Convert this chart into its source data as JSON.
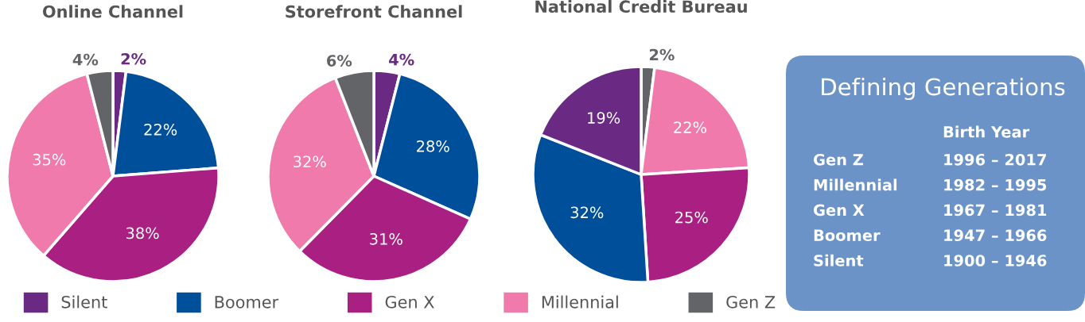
{
  "chart_data": [
    {
      "type": "pie",
      "title": "Online Channel",
      "categories": [
        "Silent",
        "Boomer",
        "Gen X",
        "Millennial",
        "Gen Z"
      ],
      "values": [
        2,
        22,
        38,
        35,
        4
      ],
      "colors": [
        "#6a2a84",
        "#004f9a",
        "#a91f82",
        "#ef7aab",
        "#636467"
      ],
      "value_labels": [
        "2%",
        "22%",
        "38%",
        "35%",
        "4%"
      ],
      "legend": "bottom"
    },
    {
      "type": "pie",
      "title": "Storefront Channel",
      "categories": [
        null,
        null,
        null,
        null,
        null
      ],
      "values": [
        4,
        28,
        31,
        32,
        6
      ],
      "colors": [
        "#6a2a84",
        "#004f9a",
        "#a91f82",
        "#ef7aab",
        "#636467"
      ],
      "value_labels": [
        "4%",
        "28%",
        "31%",
        "32%",
        "6%"
      ]
    },
    {
      "type": "pie",
      "title": "National Credit Bureau",
      "categories": [
        null,
        null,
        null,
        null,
        null
      ],
      "values": [
        2,
        22,
        25,
        32,
        19
      ],
      "colors": [
        "#636467",
        "#ef7aab",
        "#a91f82",
        "#004f9a",
        "#6a2a84"
      ],
      "value_labels": [
        "2%",
        "22%",
        "25%",
        "32%",
        "19%"
      ]
    },
    {
      "type": "other",
      "title": "Defining Generations",
      "annotations": [
        "Birth Year",
        "Gen Z",
        "1996 – 2017",
        "Millennial",
        "1982 – 1995",
        "Gen X",
        "1967 – 1981",
        "Boomer",
        "1947 – 1966",
        "Silent",
        "1900 – 1946"
      ]
    }
  ]
}
